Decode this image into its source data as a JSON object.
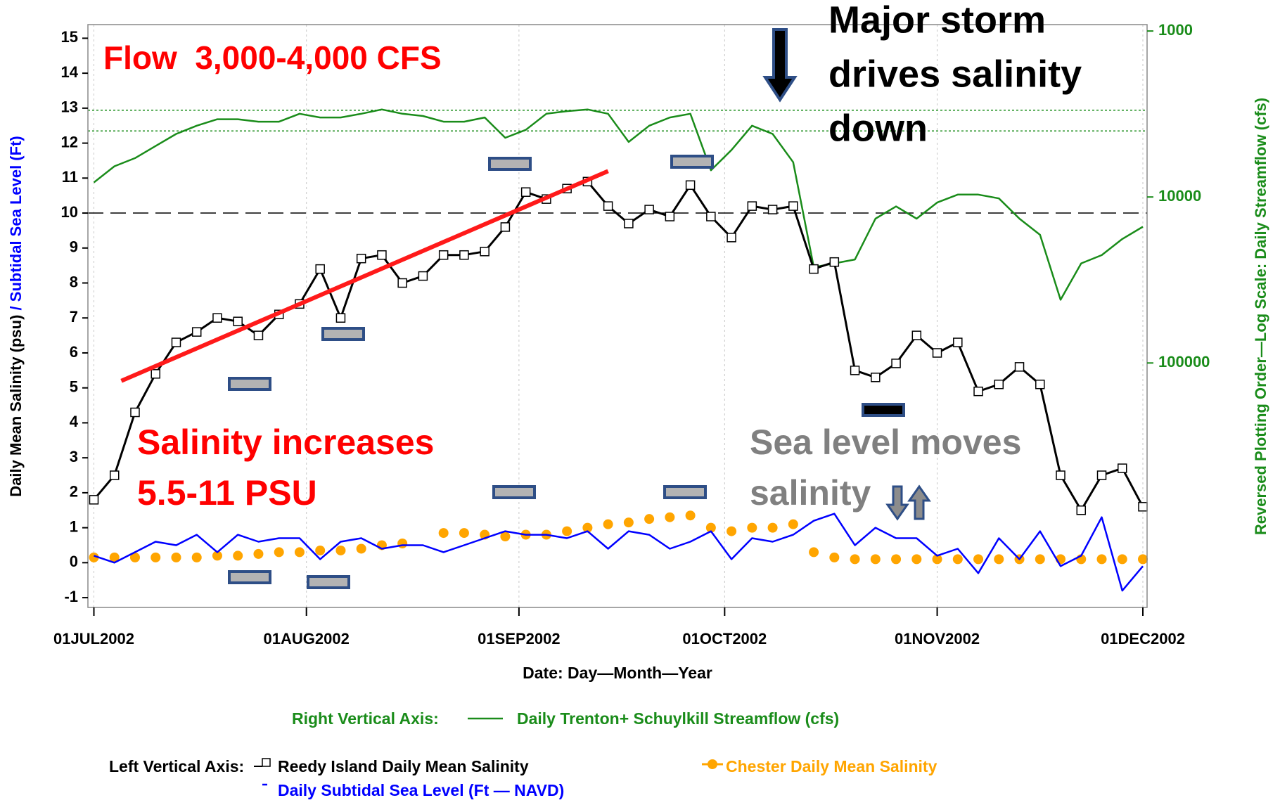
{
  "chart_data": {
    "type": "line",
    "xlabel": "Date: Day—Month—Year",
    "ylabel": [
      "Daily Mean Salinity (psu)",
      "/",
      "Subtidal Sea Level (Ft)"
    ],
    "y2label": "Reversed Plotting Order—Log Scale: Daily Streamflow (cfs)",
    "x": [
      "01JUL2002",
      "04JUL2002",
      "07JUL2002",
      "10JUL2002",
      "13JUL2002",
      "16JUL2002",
      "19JUL2002",
      "22JUL2002",
      "25JUL2002",
      "28JUL2002",
      "31JUL2002",
      "03AUG2002",
      "06AUG2002",
      "09AUG2002",
      "12AUG2002",
      "15AUG2002",
      "18AUG2002",
      "21AUG2002",
      "24AUG2002",
      "27AUG2002",
      "30AUG2002",
      "02SEP2002",
      "05SEP2002",
      "08SEP2002",
      "11SEP2002",
      "14SEP2002",
      "17SEP2002",
      "20SEP2002",
      "23SEP2002",
      "26SEP2002",
      "29SEP2002",
      "02OCT2002",
      "05OCT2002",
      "08OCT2002",
      "11OCT2002",
      "14OCT2002",
      "17OCT2002",
      "20OCT2002",
      "23OCT2002",
      "26OCT2002",
      "29OCT2002",
      "01NOV2002",
      "04NOV2002",
      "07NOV2002",
      "10NOV2002",
      "13NOV2002",
      "16NOV2002",
      "19NOV2002",
      "22NOV2002",
      "25NOV2002",
      "28NOV2002",
      "01DEC2002"
    ],
    "xlim": [
      "01JUL2002",
      "01DEC2002"
    ],
    "xticks": [
      "01JUL2002",
      "01AUG2002",
      "01SEP2002",
      "01OCT2002",
      "01NOV2002",
      "01DEC2002"
    ],
    "ylim": [
      -1.28,
      15.39
    ],
    "yticks": [
      -1,
      0,
      1,
      2,
      3,
      4,
      5,
      6,
      7,
      8,
      9,
      10,
      11,
      12,
      13,
      14,
      15
    ],
    "y2lim": [
      2970000,
      915
    ],
    "y2log": true,
    "y2ticks": [
      1000,
      10000,
      100000
    ],
    "grid": true,
    "reference_line": 10,
    "y2_reference_lines": [
      3000,
      4000
    ],
    "series": [
      {
        "name": "Reedy Island Daily Mean Salinity",
        "color": "#000000",
        "marker": "square",
        "values": [
          1.8,
          2.5,
          4.3,
          5.4,
          6.3,
          6.6,
          7.0,
          6.9,
          6.5,
          7.1,
          7.4,
          8.4,
          7.0,
          8.7,
          8.8,
          8.0,
          8.2,
          8.8,
          8.8,
          8.9,
          9.6,
          10.6,
          10.4,
          10.7,
          10.9,
          10.2,
          9.7,
          10.1,
          9.9,
          10.8,
          9.9,
          9.3,
          10.2,
          10.1,
          10.2,
          8.4,
          8.6,
          5.5,
          5.3,
          5.7,
          6.5,
          6.0,
          6.3,
          4.9,
          5.1,
          5.6,
          5.1,
          2.5,
          1.5,
          2.5,
          2.7,
          1.6
        ]
      },
      {
        "name": "Chester Daily Mean Salinity",
        "color": "#ffa500",
        "marker": "circle",
        "values": [
          0.15,
          0.15,
          0.15,
          0.15,
          0.15,
          0.15,
          0.2,
          0.2,
          0.25,
          0.3,
          0.3,
          0.35,
          0.35,
          0.4,
          0.5,
          0.55,
          null,
          0.85,
          0.85,
          0.8,
          0.75,
          0.8,
          0.8,
          0.9,
          1.0,
          1.1,
          1.15,
          1.25,
          1.3,
          1.35,
          1.0,
          0.9,
          1.0,
          1.0,
          1.1,
          0.3,
          0.15,
          0.1,
          0.1,
          0.1,
          0.1,
          0.1,
          0.1,
          0.1,
          0.1,
          0.1,
          0.1,
          0.1,
          0.1,
          0.1,
          0.1,
          0.1
        ]
      },
      {
        "name": "Daily Subtidal Sea Level (Ft — NAVD)",
        "color": "#0000ff",
        "values": [
          0.2,
          0.0,
          0.3,
          0.6,
          0.5,
          0.8,
          0.3,
          0.8,
          0.6,
          0.7,
          0.7,
          0.1,
          0.6,
          0.7,
          0.4,
          0.5,
          0.5,
          0.3,
          0.5,
          0.7,
          0.9,
          0.8,
          0.8,
          0.7,
          0.9,
          0.4,
          0.9,
          0.8,
          0.4,
          0.6,
          0.9,
          0.1,
          0.7,
          0.6,
          0.8,
          1.2,
          1.4,
          0.5,
          1.0,
          0.7,
          0.7,
          0.2,
          0.4,
          -0.3,
          0.7,
          0.1,
          0.9,
          -0.1,
          0.2,
          1.3,
          -0.8,
          -0.1
        ]
      },
      {
        "name": "Daily Trenton+ Schuylkill Streamflow (cfs)",
        "color": "#1a8c1a",
        "axis": "y2",
        "values": [
          8170,
          6530,
          5830,
          4930,
          4170,
          3720,
          3400,
          3400,
          3520,
          3520,
          3150,
          3320,
          3320,
          3150,
          2970,
          3150,
          3250,
          3520,
          3520,
          3320,
          4400,
          3940,
          3150,
          3040,
          2970,
          3150,
          4660,
          3720,
          3320,
          3150,
          6900,
          5210,
          3720,
          4170,
          6170,
          26500,
          25100,
          23800,
          13500,
          11400,
          13500,
          10800,
          9670,
          9670,
          10200,
          13500,
          16900,
          41600,
          25100,
          22400,
          17900,
          15100
        ]
      }
    ],
    "legend_groups": [
      "Right Vertical Axis:",
      "Left Vertical Axis:"
    ],
    "trend_line": {
      "color": "#ff1a1a",
      "x": [
        "05JUL2002",
        "14SEP2002"
      ],
      "values": [
        5.2,
        11.2
      ]
    },
    "annotations": [
      {
        "lines": [
          "Flow  3,000-4,000 CFS"
        ],
        "color": "#ff0000"
      },
      {
        "lines": [
          "Major storm",
          "drives salinity",
          "down"
        ],
        "color": "#000000"
      },
      {
        "lines": [
          "Salinity increases",
          "5.5-11 PSU"
        ],
        "color": "#ff0000"
      },
      {
        "lines": [
          "Sea level moves",
          "salinity"
        ],
        "color": "#808080"
      }
    ]
  }
}
